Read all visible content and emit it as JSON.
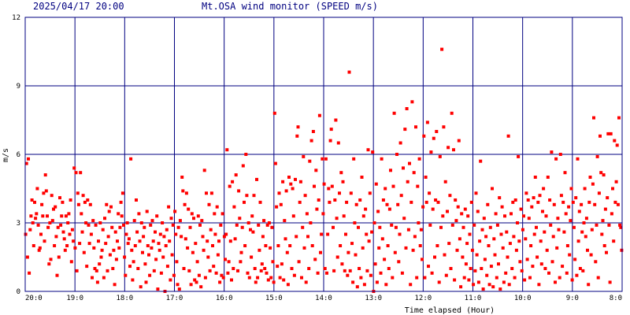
{
  "header": {
    "timestamp": "2025/04/17 20:00",
    "title": "Mt.OSA wind monitor (SPEED m/s)"
  },
  "chart_data": {
    "type": "scatter",
    "title": "Mt.OSA wind monitor (SPEED m/s)",
    "xlabel": "Time elapsed (Hour)",
    "ylabel": "m/s",
    "xlim": [
      0,
      12
    ],
    "ylim": [
      0,
      12
    ],
    "y_ticks": [
      "0",
      "3",
      "6",
      "9",
      "12"
    ],
    "x_tick_labels": [
      "20:0",
      "19:0",
      "18:0",
      "17:0",
      "16:0",
      "15:0",
      "14:0",
      "13:0",
      "12:0",
      "11:0",
      "10:0",
      "9:0",
      "8:0"
    ],
    "grid": true,
    "marker_color": "#ff0000",
    "grid_color": "#000080",
    "series": [
      {
        "values": [
          2.5,
          5.6,
          1.5,
          5.8,
          0.8,
          2.7,
          3.3,
          4.0,
          3.0,
          2.0,
          3.9,
          3.2,
          3.4,
          4.5,
          2.9,
          1.8,
          1.9,
          2.5,
          3.8,
          3.3,
          4.3,
          2.2,
          5.1,
          4.4,
          3.3,
          2.8,
          1.2,
          3.0,
          1.4,
          4.2,
          3.1,
          3.6,
          2.0,
          3.7,
          2.4,
          0.7,
          2.8,
          1.5,
          4.1,
          2.9,
          3.3,
          3.9,
          2.6,
          2.3,
          1.8,
          3.3,
          2.0,
          3.0,
          3.4,
          2.5,
          4.0,
          1.3,
          2.7,
          2.2,
          5.4,
          1.9,
          5.2,
          0.9,
          4.3,
          3.8,
          2.1,
          5.2,
          3.4,
          2.6,
          4.2,
          1.7,
          3.9,
          3.0,
          1.1,
          4.0,
          2.9,
          2.1,
          3.8,
          2.5,
          0.6,
          3.1,
          1.9,
          1.0,
          2.9,
          0.9,
          0.4,
          2.2,
          1.2,
          3.0,
          1.5,
          1.8,
          2.7,
          0.6,
          3.2,
          2.1,
          3.8,
          0.9,
          2.4,
          3.5,
          1.6,
          3.7,
          2.8,
          1.0,
          1.8,
          0.3,
          2.6,
          1.4,
          2.2,
          3.4,
          1.9,
          2.8,
          3.9,
          3.3,
          4.3,
          2.9,
          1.5,
          0.7,
          2.5,
          3.0,
          2.1,
          2.3,
          1.1,
          5.8,
          1.8,
          0.5,
          1.3,
          3.1,
          2.0,
          4.0,
          2.6,
          1.0,
          3.4,
          2.2,
          0.2,
          3.0,
          1.7,
          2.4,
          2.8,
          1.2,
          0.4,
          3.5,
          2.0,
          1.6,
          0.7,
          2.9,
          1.9,
          3.1,
          2.2,
          0.9,
          2.6,
          1.4,
          3.3,
          0.1,
          2.1,
          1.8,
          2.5,
          0.8,
          3.0,
          1.5,
          2.4,
          0.0,
          2.0,
          2.7,
          1.1,
          3.7,
          2.2,
          0.5,
          3.2,
          1.6,
          2.9,
          0.7,
          3.5,
          2.5,
          1.3,
          0.3,
          2.8,
          0.1,
          3.1,
          2.4,
          5.0,
          4.4,
          1.0,
          3.8,
          2.3,
          4.3,
          1.9,
          3.6,
          0.9,
          2.8,
          0.3,
          3.4,
          1.7,
          3.2,
          0.5,
          2.1,
          0.4,
          1.3,
          3.3,
          0.7,
          2.9,
          0.2,
          3.1,
          2.4,
          1.8,
          5.3,
          0.6,
          4.3,
          2.2,
          1.5,
          3.8,
          0.9,
          2.7,
          4.3,
          2.0,
          1.1,
          3.4,
          2.5,
          0.8,
          3.7,
          1.6,
          2.2,
          0.4,
          2.9,
          0.7,
          3.4,
          0.6,
          2.4,
          1.4,
          2.5,
          6.2,
          0.8,
          1.3,
          4.6,
          2.2,
          0.5,
          4.8,
          1.0,
          3.7,
          2.3,
          5.1,
          2.9,
          0.9,
          4.4,
          3.2,
          1.3,
          1.7,
          2.8,
          5.5,
          3.9,
          2.0,
          6.0,
          4.2,
          0.8,
          3.0,
          0.6,
          2.7,
          1.5,
          3.3,
          2.6,
          4.2,
          1.0,
          0.4,
          4.9,
          0.6,
          2.9,
          1.8,
          3.9,
          0.9,
          1.2,
          2.4,
          3.1,
          1.0,
          2.0,
          0.8,
          2.9,
          0.5,
          3.0,
          1.9,
          0.6,
          2.8,
          1.3,
          0.4,
          7.8,
          5.6,
          3.7,
          1.1,
          2.0,
          4.3,
          0.6,
          3.8,
          1.2,
          4.8,
          0.5,
          3.1,
          2.3,
          4.4,
          1.7,
          0.3,
          5.0,
          2.0,
          4.7,
          1.0,
          4.5,
          3.3,
          0.7,
          4.9,
          2.4,
          6.8,
          7.2,
          1.3,
          3.9,
          4.8,
          0.6,
          2.8,
          5.9,
          1.9,
          4.2,
          0.4,
          3.4,
          2.4,
          1.0,
          5.7,
          3.0,
          6.6,
          2.0,
          7.0,
          4.6,
          1.4,
          5.3,
          3.6,
          0.8,
          4.0,
          7.7,
          1.7,
          2.5,
          5.8,
          3.4,
          4.7,
          1.0,
          5.8,
          0.8,
          2.5,
          4.5,
          3.9,
          6.6,
          7.1,
          4.6,
          2.8,
          0.9,
          4.0,
          7.5,
          3.2,
          1.5,
          6.5,
          4.3,
          2.0,
          5.2,
          1.2,
          4.8,
          3.3,
          0.9,
          2.5,
          3.9,
          0.7,
          1.7,
          9.6,
          0.9,
          4.3,
          2.1,
          0.4,
          5.8,
          3.0,
          1.6,
          3.8,
          0.2,
          2.8,
          1.0,
          4.0,
          0.6,
          5.0,
          1.9,
          3.3,
          0.3,
          3.6,
          2.5,
          0.9,
          6.2,
          2.2,
          4.3,
          0.7,
          2.6,
          6.1,
          0.0,
          3.0,
          1.2,
          4.7,
          0.4,
          3.5,
          1.9,
          2.8,
          0.8,
          5.8,
          2.3,
          4.0,
          1.4,
          4.5,
          0.3,
          3.8,
          2.0,
          1.0,
          3.6,
          5.3,
          2.9,
          0.6,
          4.6,
          7.8,
          1.7,
          2.8,
          6.0,
          3.8,
          1.3,
          2.5,
          6.5,
          4.2,
          0.8,
          5.4,
          3.2,
          7.1,
          1.9,
          8.0,
          4.8,
          2.7,
          5.6,
          0.3,
          3.9,
          8.3,
          1.8,
          5.2,
          2.4,
          7.2,
          0.6,
          4.6,
          3.0,
          5.8,
          2.0,
          2.7,
          1.4,
          3.7,
          6.8,
          0.6,
          5.0,
          3.9,
          7.4,
          1.1,
          4.3,
          2.9,
          6.1,
          0.8,
          3.6,
          6.7,
          1.5,
          4.0,
          7.0,
          2.0,
          3.9,
          0.4,
          5.9,
          2.8,
          10.6,
          3.3,
          7.2,
          1.6,
          4.8,
          0.7,
          3.5,
          6.3,
          2.1,
          4.2,
          1.0,
          7.8,
          2.9,
          6.2,
          0.5,
          4.0,
          3.1,
          1.8,
          3.7,
          6.6,
          2.3,
          0.2,
          3.4,
          1.5,
          2.8,
          0.6,
          3.6,
          1.2,
          2.1,
          3.3,
          0.5,
          2.5,
          1.0,
          3.9,
          1.8,
          0.3,
          2.9,
          0.9,
          4.3,
          1.6,
          3.5,
          0.4,
          2.2,
          5.7,
          1.0,
          2.7,
          0.1,
          3.2,
          1.4,
          2.4,
          0.7,
          3.8,
          2.0,
          0.3,
          2.8,
          1.1,
          4.5,
          0.2,
          2.3,
          1.6,
          3.4,
          0.6,
          2.9,
          1.2,
          4.1,
          0.1,
          2.5,
          3.7,
          1.9,
          0.4,
          3.3,
          0.8,
          2.6,
          1.5,
          6.8,
          0.3,
          2.1,
          3.4,
          1.0,
          3.9,
          2.4,
          0.6,
          4.0,
          1.8,
          3.0,
          5.9,
          2.2,
          1.3,
          3.6,
          0.9,
          2.7,
          3.3,
          0.5,
          2.3,
          4.3,
          1.4,
          4.0,
          3.2,
          0.6,
          2.0,
          3.7,
          1.1,
          4.1,
          2.5,
          5.0,
          2.8,
          1.5,
          3.9,
          0.3,
          4.2,
          2.2,
          1.2,
          3.5,
          4.5,
          2.6,
          1.0,
          3.3,
          1.8,
          5.0,
          0.8,
          4.0,
          2.9,
          6.1,
          1.3,
          2.4,
          3.8,
          0.4,
          5.8,
          1.9,
          3.2,
          2.7,
          0.6,
          6.0,
          4.2,
          1.1,
          3.9,
          2.6,
          5.2,
          3.4,
          0.8,
          2.0,
          3.7,
          1.6,
          3.1,
          4.5,
          0.5,
          3.9,
          2.8,
          1.4,
          4.1,
          0.7,
          5.8,
          2.2,
          3.5,
          1.0,
          3.8,
          2.6,
          0.9,
          3.0,
          4.5,
          2.4,
          3.2,
          1.8,
          0.3,
          3.9,
          5.0,
          1.6,
          2.7,
          4.7,
          7.6,
          3.8,
          1.3,
          2.9,
          5.9,
          0.6,
          4.3,
          6.8,
          5.2,
          2.5,
          3.1,
          5.1,
          2.0,
          3.6,
          1.7,
          4.1,
          6.9,
          2.9,
          0.4,
          6.9,
          3.4,
          4.5,
          2.2,
          6.6,
          3.9,
          4.8,
          6.4,
          3.8,
          7.6,
          2.9,
          2.8,
          1.8
        ]
      }
    ]
  }
}
